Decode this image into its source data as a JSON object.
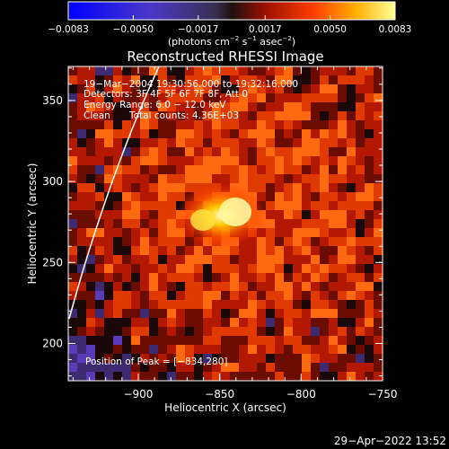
{
  "chart_data": {
    "type": "heatmap",
    "title": "Reconstructed RHESSI Image",
    "xlabel": "Heliocentric X (arcsec)",
    "ylabel": "Heliocentric Y (arcsec)",
    "xlim": [
      -943,
      -750
    ],
    "ylim": [
      177,
      371
    ],
    "xticks": [
      -900,
      -850,
      -800,
      -750
    ],
    "xtick_labels": [
      "−900",
      "−850",
      "−800",
      "−750"
    ],
    "yticks": [
      200,
      250,
      300,
      350
    ],
    "ytick_labels": [
      "200",
      "250",
      "300",
      "350"
    ],
    "colorbar": {
      "range": [
        -0.0083,
        0.0083
      ],
      "ticks": [
        -0.0083,
        -0.005,
        -0.0017,
        0.0017,
        0.005,
        0.0083
      ],
      "tick_labels": [
        "−0.0083",
        "−0.0050",
        "−0.0017",
        "0.0017",
        "0.0050",
        "0.0083"
      ],
      "unit_prefix": "(photons cm",
      "unit_exp1": "−2",
      "unit_mid": " s",
      "unit_exp2": "−1",
      "unit_mid2": " asec",
      "unit_exp3": "−2",
      "unit_suffix": ")"
    },
    "annotations": {
      "time_range": "19−Mar−2004 19:30:56.000 to 19:32:16.000",
      "detectors": "Detectors: 3F 4F 5F 6F 7F 8F, Att 0",
      "energy": "Energy Range: 6.0 − 12.0 keV",
      "method": "Clean",
      "counts": "Total counts: 4.36E+03",
      "peak": "Position of Peak = [−834,280]"
    },
    "peak": [
      -834,
      280
    ],
    "grid": false,
    "limb_curve": "solar limb arc near left edge"
  },
  "footer": {
    "timestamp": "29−Apr−2022 13:52"
  }
}
